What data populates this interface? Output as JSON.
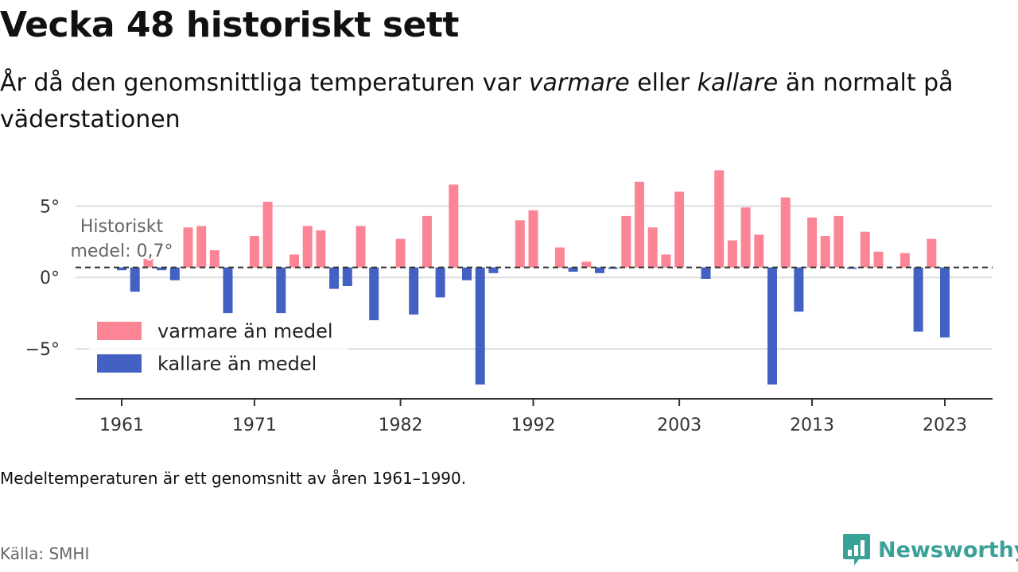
{
  "title": "Vecka 48 historiskt sett",
  "subtitle": {
    "part1": "År då den genomsnittliga temperaturen var ",
    "warm_word": "varmare",
    "part2": " eller ",
    "cold_word": "kallare",
    "part3": " än normalt på väderstationen"
  },
  "footnote": "Medeltemperaturen är ett genomsnitt av åren 1961–1990.",
  "source": "Källa: SMHI",
  "brand": {
    "name": "Newsworthy",
    "icon": "newsworthy-logo-icon",
    "color": "#3aa197"
  },
  "colors": {
    "warm": "#fb8595",
    "cold": "#4361c2",
    "reference_line": "#333333",
    "grid": "#dddddd"
  },
  "chart_data": {
    "type": "bar",
    "x": [
      1961,
      1962,
      1963,
      1964,
      1965,
      1966,
      1967,
      1968,
      1969,
      1970,
      1971,
      1972,
      1973,
      1974,
      1975,
      1976,
      1977,
      1978,
      1979,
      1980,
      1981,
      1982,
      1983,
      1984,
      1985,
      1986,
      1987,
      1988,
      1989,
      1990,
      1991,
      1992,
      1993,
      1994,
      1995,
      1996,
      1997,
      1998,
      1999,
      2000,
      2001,
      2002,
      2003,
      2004,
      2005,
      2006,
      2007,
      2008,
      2009,
      2010,
      2011,
      2012,
      2013,
      2014,
      2015,
      2016,
      2017,
      2018,
      2019,
      2020,
      2021,
      2022,
      2023
    ],
    "values": [
      0.5,
      -1,
      1.3,
      0.5,
      -0.2,
      3.5,
      3.6,
      1.9,
      -2.5,
      null,
      2.9,
      5.3,
      -2.5,
      1.6,
      3.6,
      3.3,
      -0.8,
      -0.6,
      3.6,
      -3.0,
      null,
      2.7,
      -2.6,
      4.3,
      -1.4,
      6.5,
      -0.2,
      -7.5,
      0.3,
      null,
      4.0,
      4.7,
      null,
      2.1,
      0.4,
      1.1,
      0.3,
      0.6,
      4.3,
      6.7,
      3.5,
      1.6,
      6.0,
      null,
      -0.1,
      7.5,
      2.6,
      4.9,
      3.0,
      -7.5,
      5.6,
      -2.4,
      4.2,
      2.9,
      4.3,
      0.6,
      3.2,
      1.8,
      null,
      1.7,
      -3.8,
      2.7,
      -4.2
    ],
    "reference": {
      "value": 0.7,
      "label_line1": "Historiskt",
      "label_line2": "medel: 0,7°"
    },
    "y_ticks": [
      {
        "value": 5,
        "label": "5°"
      },
      {
        "value": 0,
        "label": "0°"
      },
      {
        "value": -5,
        "label": "−5°"
      }
    ],
    "x_ticks": [
      1961,
      1971,
      1982,
      1992,
      2003,
      2013,
      2023
    ],
    "ylim": [
      -8.5,
      8.3
    ],
    "grid": true,
    "legend_placement": "bottom-left",
    "series": [
      {
        "name": "varmare än medel",
        "color": "#fb8595"
      },
      {
        "name": "kallare än medel",
        "color": "#4361c2"
      }
    ]
  }
}
